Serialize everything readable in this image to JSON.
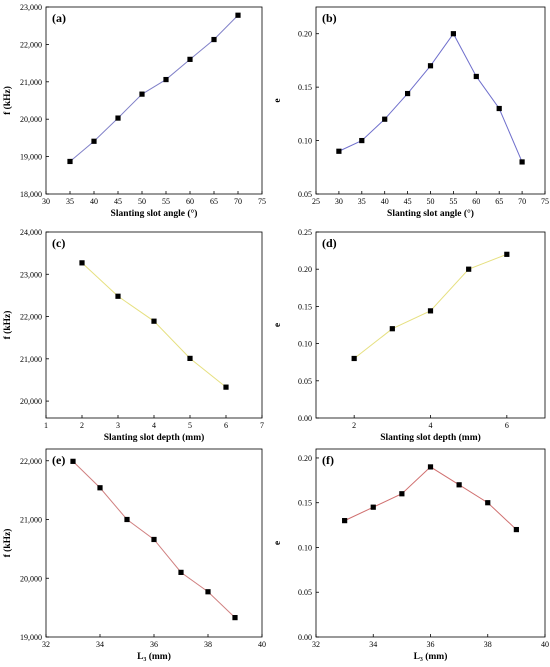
{
  "colors": {
    "marker": "#000000",
    "axis": "#000000"
  },
  "chart_data": [
    {
      "type": "line",
      "panel_label": "(a)",
      "xlabel": "Slanting slot angle (°)",
      "ylabel": "f (kHz)",
      "x": [
        35,
        40,
        45,
        50,
        55,
        60,
        65,
        70
      ],
      "series": [
        {
          "values": [
            18870,
            19410,
            20030,
            20670,
            21060,
            21600,
            22130,
            22780
          ],
          "color": "#8080c8"
        }
      ],
      "xlim": [
        30,
        75
      ],
      "ylim": [
        18000,
        23000
      ],
      "xticks": [
        30,
        35,
        40,
        45,
        50,
        55,
        60,
        65,
        70,
        75
      ],
      "yticks": [
        18000,
        19000,
        20000,
        21000,
        22000,
        23000
      ],
      "xtick_labels": [
        "30",
        "35",
        "40",
        "45",
        "50",
        "55",
        "60",
        "65",
        "70",
        "75"
      ],
      "ytick_labels": [
        "18,000",
        "19,000",
        "20,000",
        "21,000",
        "22,000",
        "23,000"
      ],
      "grid": false
    },
    {
      "type": "line",
      "panel_label": "(b)",
      "xlabel": "Slanting slot angle (°)",
      "ylabel": "e",
      "x": [
        30,
        35,
        40,
        45,
        50,
        55,
        60,
        65,
        70
      ],
      "series": [
        {
          "values": [
            0.09,
            0.1,
            0.12,
            0.144,
            0.17,
            0.2,
            0.16,
            0.13,
            0.08
          ],
          "color": "#6f6fcc"
        }
      ],
      "xlim": [
        25,
        75
      ],
      "ylim": [
        0.05,
        0.225
      ],
      "xticks": [
        25,
        30,
        35,
        40,
        45,
        50,
        55,
        60,
        65,
        70,
        75
      ],
      "yticks": [
        0.05,
        0.1,
        0.15,
        0.2
      ],
      "xtick_labels": [
        "25",
        "30",
        "35",
        "40",
        "45",
        "50",
        "55",
        "60",
        "65",
        "70",
        "75"
      ],
      "ytick_labels": [
        "0.05",
        "0.10",
        "0.15",
        "0.20"
      ],
      "grid": false
    },
    {
      "type": "line",
      "panel_label": "(c)",
      "xlabel": "Slanting slot depth (mm)",
      "ylabel": "f (kHz)",
      "x": [
        2,
        3,
        4,
        5,
        6
      ],
      "series": [
        {
          "values": [
            23270,
            22480,
            21890,
            21010,
            20330
          ],
          "color": "#e6e080"
        }
      ],
      "xlim": [
        1,
        7
      ],
      "ylim": [
        19600,
        24000
      ],
      "xticks": [
        1,
        2,
        3,
        4,
        5,
        6,
        7
      ],
      "yticks": [
        20000,
        21000,
        22000,
        23000,
        24000
      ],
      "xtick_labels": [
        "1",
        "2",
        "3",
        "4",
        "5",
        "6",
        "7"
      ],
      "ytick_labels": [
        "20,000",
        "21,000",
        "22,000",
        "23,000",
        "24,000"
      ],
      "grid": false
    },
    {
      "type": "line",
      "panel_label": "(d)",
      "xlabel": "Slanting slot depth (mm)",
      "ylabel": "e",
      "x": [
        2,
        3,
        4,
        5,
        6
      ],
      "series": [
        {
          "values": [
            0.08,
            0.12,
            0.144,
            0.2,
            0.22
          ],
          "color": "#e6e080"
        }
      ],
      "xlim": [
        1,
        7
      ],
      "ylim": [
        0.0,
        0.25
      ],
      "xticks": [
        2,
        4,
        6
      ],
      "yticks": [
        0.0,
        0.05,
        0.1,
        0.15,
        0.2,
        0.25
      ],
      "xtick_labels": [
        "2",
        "4",
        "6"
      ],
      "ytick_labels": [
        "0.00",
        "0.05",
        "0.10",
        "0.15",
        "0.20",
        "0.25"
      ],
      "grid": false
    },
    {
      "type": "line",
      "panel_label": "(e)",
      "xlabel": "L₃ (mm)",
      "ylabel": "f (kHz)",
      "x": [
        33,
        34,
        35,
        36,
        37,
        38,
        39
      ],
      "series": [
        {
          "values": [
            21990,
            21540,
            21000,
            20660,
            20100,
            19770,
            19330
          ],
          "color": "#d08080"
        }
      ],
      "xlim": [
        32,
        40
      ],
      "ylim": [
        19000,
        22200
      ],
      "xticks": [
        32,
        34,
        36,
        38,
        40
      ],
      "yticks": [
        19000,
        20000,
        21000,
        22000
      ],
      "xtick_labels": [
        "32",
        "34",
        "36",
        "38",
        "40"
      ],
      "ytick_labels": [
        "19,000",
        "20,000",
        "21,000",
        "22,000"
      ],
      "grid": false
    },
    {
      "type": "line",
      "panel_label": "(f)",
      "xlabel": "L₃ (mm)",
      "ylabel": "e",
      "x": [
        33,
        34,
        35,
        36,
        37,
        38,
        39
      ],
      "series": [
        {
          "values": [
            0.13,
            0.145,
            0.16,
            0.19,
            0.17,
            0.15,
            0.12
          ],
          "color": "#d07070"
        }
      ],
      "xlim": [
        32,
        40
      ],
      "ylim": [
        0.0,
        0.21
      ],
      "xticks": [
        32,
        34,
        36,
        38,
        40
      ],
      "yticks": [
        0.0,
        0.05,
        0.1,
        0.15,
        0.2
      ],
      "xtick_labels": [
        "32",
        "34",
        "36",
        "38",
        "40"
      ],
      "ytick_labels": [
        "0.00",
        "0.05",
        "0.10",
        "0.15",
        "0.20"
      ],
      "grid": false
    }
  ]
}
